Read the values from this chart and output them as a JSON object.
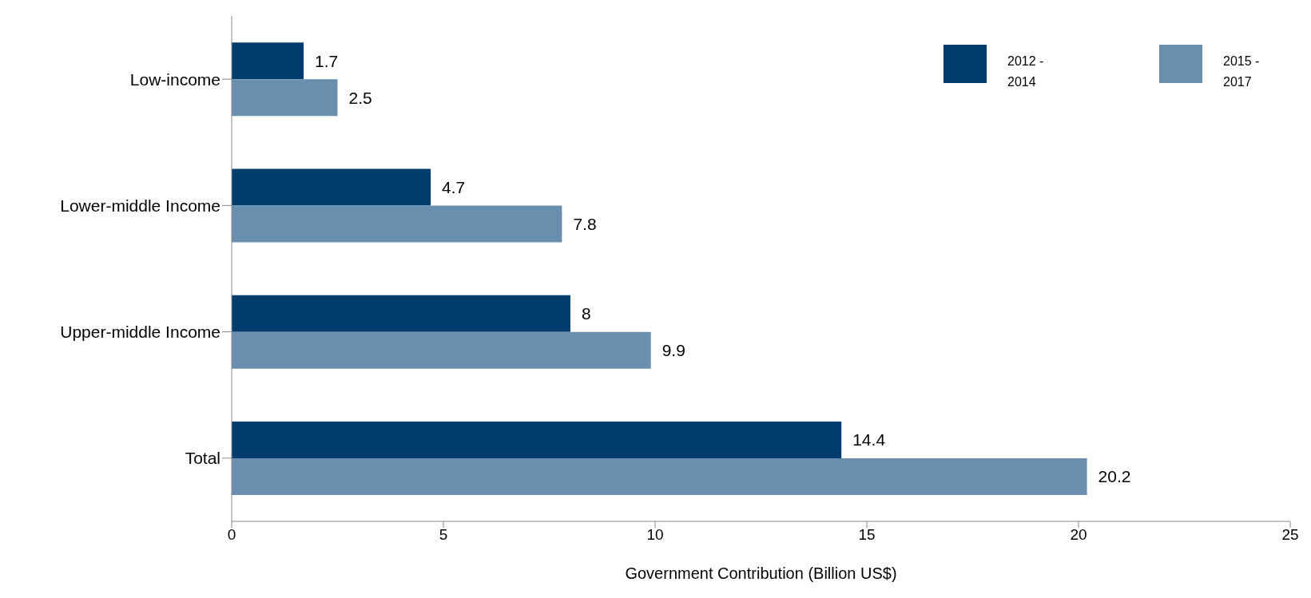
{
  "chart_data": {
    "type": "bar",
    "orientation": "horizontal",
    "xlabel": "Government Contribution (Billion US$)",
    "categories": [
      "Low-income",
      "Lower-middle Income",
      "Upper-middle Income",
      "Total"
    ],
    "series": [
      {
        "name": "2012 - 2014",
        "color": "#003d6e",
        "values": [
          1.7,
          4.7,
          8,
          14.4
        ]
      },
      {
        "name": "2015 - 2017",
        "color": "#6a8fae",
        "values": [
          2.5,
          7.8,
          9.9,
          20.2
        ]
      }
    ],
    "xlim": [
      0,
      25
    ],
    "xticks": [
      0,
      5,
      10,
      15,
      20,
      25
    ],
    "data_labels": true,
    "legend": "top right",
    "grid": false
  }
}
